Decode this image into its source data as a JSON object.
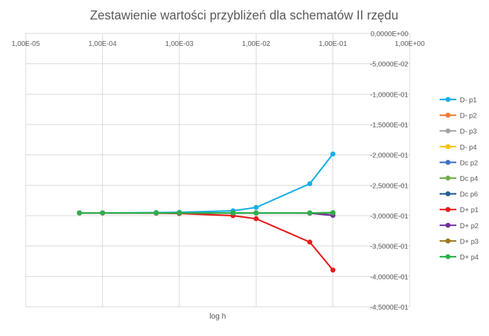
{
  "chart_data": {
    "type": "line",
    "title": "Zestawienie wartości przybliżeń dla schematów II rzędu",
    "xlabel": "log h",
    "ylabel": "",
    "x_scale": "log",
    "xlim": [
      1e-05,
      1
    ],
    "ylim": [
      -0.45,
      0
    ],
    "grid": true,
    "legend_position": "right",
    "x_ticks": [
      "1,00E-05",
      "1,00E-04",
      "1,00E-03",
      "1,00E-02",
      "1,00E-01",
      "1,00E+00"
    ],
    "x_tick_values": [
      1e-05,
      0.0001,
      0.001,
      0.01,
      0.1,
      1
    ],
    "y_ticks": [
      "0,0000E+00",
      "-5,0000E-02",
      "-1,0000E-01",
      "-1,5000E-01",
      "-2,0000E-01",
      "-2,5000E-01",
      "-3,0000E-01",
      "-3,5000E-01",
      "-4,0000E-01",
      "-4,5000E-01"
    ],
    "y_tick_values": [
      0,
      -0.05,
      -0.1,
      -0.15,
      -0.2,
      -0.25,
      -0.3,
      -0.35,
      -0.4,
      -0.45
    ],
    "x": [
      5e-05,
      0.0001,
      0.0005,
      0.001,
      0.005,
      0.01,
      0.05,
      0.1
    ],
    "series": [
      {
        "name": "D- p1",
        "color": "#1aaee6",
        "values": [
          -0.2955,
          -0.2955,
          -0.295,
          -0.2945,
          -0.292,
          -0.2865,
          -0.2475,
          -0.1985
        ]
      },
      {
        "name": "D- p2",
        "color": "#ed7d31",
        "values": [
          -0.2955,
          -0.2955,
          -0.2955,
          -0.2955,
          -0.2955,
          -0.2955,
          -0.2955,
          -0.2955
        ]
      },
      {
        "name": "D- p3",
        "color": "#a5a5a5",
        "values": [
          -0.2955,
          -0.2955,
          -0.2955,
          -0.2955,
          -0.2955,
          -0.2955,
          -0.2955,
          -0.2955
        ]
      },
      {
        "name": "D- p4",
        "color": "#ffc000",
        "values": [
          -0.2955,
          -0.2955,
          -0.2955,
          -0.2955,
          -0.2955,
          -0.2955,
          -0.2955,
          -0.2955
        ]
      },
      {
        "name": "Dc p2",
        "color": "#4472c4",
        "values": [
          -0.2955,
          -0.2955,
          -0.2955,
          -0.2955,
          -0.2955,
          -0.2955,
          -0.2955,
          -0.296
        ]
      },
      {
        "name": "Dc p4",
        "color": "#70ad47",
        "values": [
          -0.2955,
          -0.2955,
          -0.2955,
          -0.2955,
          -0.2955,
          -0.2955,
          -0.2955,
          -0.2955
        ]
      },
      {
        "name": "Dc p6",
        "color": "#255e91",
        "values": [
          -0.2955,
          -0.2955,
          -0.2955,
          -0.2955,
          -0.2955,
          -0.2955,
          -0.2955,
          -0.2955
        ]
      },
      {
        "name": "D+ p1",
        "color": "#e81a1a",
        "values": [
          -0.2955,
          -0.2955,
          -0.296,
          -0.2965,
          -0.3,
          -0.305,
          -0.3435,
          -0.3895
        ]
      },
      {
        "name": "D+ p2",
        "color": "#7030a0",
        "values": [
          -0.2955,
          -0.2955,
          -0.2955,
          -0.2955,
          -0.2955,
          -0.2955,
          -0.296,
          -0.2995
        ]
      },
      {
        "name": "D+ p3",
        "color": "#9c7a1a",
        "values": [
          -0.2955,
          -0.2955,
          -0.2955,
          -0.2955,
          -0.2955,
          -0.2955,
          -0.2955,
          -0.2955
        ]
      },
      {
        "name": "D+ p4",
        "color": "#2ab04c",
        "values": [
          -0.2955,
          -0.2955,
          -0.2955,
          -0.2955,
          -0.2955,
          -0.2955,
          -0.2955,
          -0.295
        ]
      }
    ]
  }
}
